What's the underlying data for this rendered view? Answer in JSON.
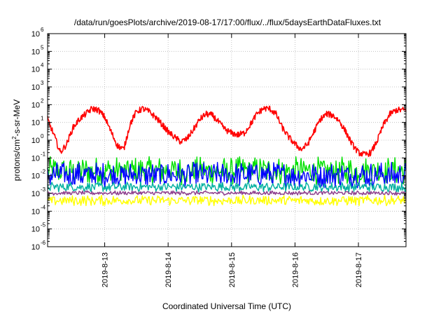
{
  "chart_data": {
    "type": "line",
    "title": "/data/run/goesPlots/archive/2019-08-17/17:00/flux/../flux/5daysEarthDataFluxes.txt",
    "xlabel": "Coordinated Universal Time (UTC)",
    "ylabel": "protons/cm²-s-sr-MeV",
    "y_scale": "log",
    "ylim_exponents": [
      -6,
      6
    ],
    "y_tick_exponents": [
      -6,
      -5,
      -4,
      -3,
      -2,
      -1,
      0,
      1,
      2,
      3,
      4,
      5,
      6
    ],
    "y_tick_base": "10",
    "xlim_days": [
      12.1,
      17.75
    ],
    "x_ticks": [
      {
        "day": 13,
        "label": "2019-8-13"
      },
      {
        "day": 14,
        "label": "2019-8-14"
      },
      {
        "day": 15,
        "label": "2019-8-15"
      },
      {
        "day": 16,
        "label": "2019-8-16"
      },
      {
        "day": 17,
        "label": "2019-8-17"
      }
    ],
    "grid": true,
    "legend": "none",
    "series": [
      {
        "color": "#ff0000",
        "x": [
          12.1,
          12.2,
          12.3,
          12.4,
          12.5,
          12.6,
          12.7,
          12.8,
          12.9,
          13.0,
          13.1,
          13.2,
          13.3,
          13.4,
          13.5,
          13.6,
          13.7,
          13.8,
          13.9,
          14.0,
          14.1,
          14.2,
          14.3,
          14.4,
          14.5,
          14.6,
          14.7,
          14.8,
          14.9,
          15.0,
          15.1,
          15.2,
          15.3,
          15.4,
          15.5,
          15.6,
          15.7,
          15.8,
          15.9,
          16.0,
          16.1,
          16.2,
          16.3,
          16.4,
          16.5,
          16.6,
          16.7,
          16.8,
          16.9,
          17.0,
          17.1,
          17.2,
          17.3,
          17.4,
          17.5,
          17.6,
          17.7,
          17.75
        ],
        "y": [
          15,
          2,
          0.2,
          0.6,
          5,
          15,
          30,
          60,
          50,
          20,
          3,
          0.5,
          0.3,
          8,
          40,
          60,
          40,
          20,
          8,
          3,
          1.5,
          0.8,
          1.2,
          4,
          15,
          30,
          25,
          10,
          4,
          2.5,
          2,
          2.5,
          8,
          30,
          60,
          60,
          30,
          5,
          1.5,
          0.6,
          0.3,
          0.6,
          3,
          15,
          30,
          25,
          12,
          3,
          0.6,
          0.2,
          0.15,
          0.2,
          1,
          8,
          30,
          50,
          50,
          50
        ],
        "noise": "light"
      },
      {
        "color": "#00e000",
        "band_low": 0.003,
        "band_high": 0.12,
        "noise": "dense"
      },
      {
        "color": "#0000ff",
        "band_low": 0.002,
        "band_high": 0.06,
        "noise": "dense"
      },
      {
        "color": "#00b0a0",
        "band_low": 0.0012,
        "band_high": 0.0045,
        "noise": "dense"
      },
      {
        "color": "#8b3a8b",
        "band_low": 0.0008,
        "band_high": 0.0014,
        "noise": "dense"
      },
      {
        "color": "#ffff00",
        "band_low": 0.0002,
        "band_high": 0.0008,
        "noise": "dense"
      }
    ]
  }
}
